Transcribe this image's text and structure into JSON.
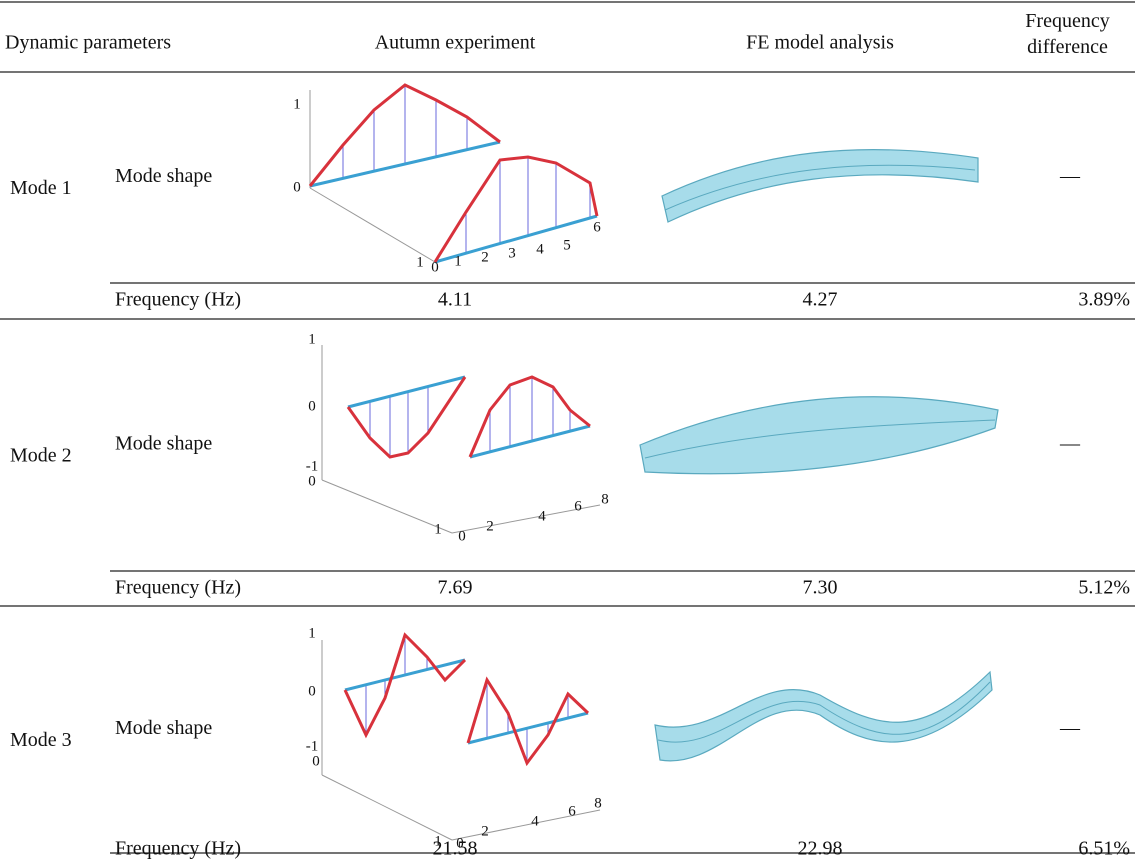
{
  "header": {
    "columns": [
      "Dynamic parameters",
      "Autumn experiment",
      "FE model analysis",
      "Frequency difference"
    ]
  },
  "table": {
    "rows": [
      {
        "mode": "Mode 1",
        "shape_label": "Mode shape",
        "shape_difference": "—",
        "frequency_label": "Frequency (Hz)",
        "experiment": "4.11",
        "fe": "4.27",
        "difference": "3.89%",
        "plot_ticks": [
          "1",
          "0",
          "1",
          "0",
          "1",
          "2",
          "3",
          "4",
          "5",
          "6"
        ]
      },
      {
        "mode": "Mode 2",
        "shape_label": "Mode shape",
        "shape_difference": "—",
        "frequency_label": "Frequency (Hz)",
        "experiment": "7.69",
        "fe": "7.30",
        "difference": "5.12%",
        "plot_ticks": [
          "1",
          "0",
          "-1",
          "0",
          "1",
          "0",
          "2",
          "4",
          "6",
          "8"
        ]
      },
      {
        "mode": "Mode 3",
        "shape_label": "Mode shape",
        "shape_difference": "—",
        "frequency_label": "Frequency (Hz)",
        "experiment": "21.58",
        "fe": "22.98",
        "difference": "6.51%",
        "plot_ticks": [
          "1",
          "0",
          "-1",
          "0",
          "1",
          "0",
          "2",
          "4",
          "6",
          "8"
        ]
      }
    ]
  }
}
